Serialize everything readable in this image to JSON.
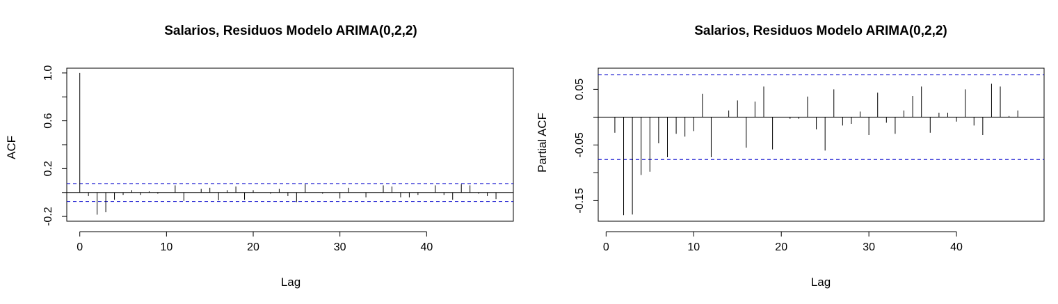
{
  "chart_data": [
    {
      "type": "bar",
      "title": "Salarios, Residuos Modelo ARIMA(0,2,2)",
      "xlabel": "Lag",
      "ylabel": "ACF",
      "xticks": [
        "0",
        "10",
        "20",
        "30",
        "40"
      ],
      "yticks": [
        "-0.2",
        "0.2",
        "0.6",
        "1.0"
      ],
      "xlim": [
        -1.5,
        50
      ],
      "ylim": [
        -0.24,
        1.04
      ],
      "confidence_bound": 0.075,
      "lags": [
        0,
        1,
        2,
        3,
        4,
        5,
        6,
        7,
        8,
        9,
        10,
        11,
        12,
        13,
        14,
        15,
        16,
        17,
        18,
        19,
        20,
        21,
        22,
        23,
        24,
        25,
        26,
        27,
        28,
        29,
        30,
        31,
        32,
        33,
        34,
        35,
        36,
        37,
        38,
        39,
        40,
        41,
        42,
        43,
        44,
        45,
        46,
        47,
        48
      ],
      "values": [
        1.0,
        -0.03,
        -0.185,
        -0.165,
        -0.06,
        -0.02,
        0.02,
        -0.02,
        0.01,
        -0.01,
        0.0,
        0.06,
        -0.07,
        0.0,
        0.03,
        0.04,
        -0.065,
        0.02,
        0.05,
        -0.06,
        0.02,
        0.0,
        -0.01,
        0.03,
        -0.03,
        -0.08,
        0.07,
        0.0,
        -0.01,
        0.0,
        -0.05,
        0.04,
        0.0,
        -0.04,
        0.0,
        0.06,
        0.05,
        -0.04,
        -0.04,
        -0.02,
        0.0,
        0.06,
        -0.02,
        -0.06,
        0.07,
        0.06,
        -0.01,
        -0.03,
        -0.055
      ],
      "series_color": "#000000",
      "bound_color": "#0000cc"
    },
    {
      "type": "bar",
      "title": "Salarios, Residuos Modelo ARIMA(0,2,2)",
      "xlabel": "Lag",
      "ylabel": "Partial ACF",
      "xticks": [
        "0",
        "10",
        "20",
        "30",
        "40"
      ],
      "yticks": [
        "-0.15",
        "-0.05",
        "0.05"
      ],
      "xlim": [
        -0.9,
        50
      ],
      "ylim": [
        -0.187,
        0.088
      ],
      "confidence_bound": 0.076,
      "lags": [
        1,
        2,
        3,
        4,
        5,
        6,
        7,
        8,
        9,
        10,
        11,
        12,
        13,
        14,
        15,
        16,
        17,
        18,
        19,
        20,
        21,
        22,
        23,
        24,
        25,
        26,
        27,
        28,
        29,
        30,
        31,
        32,
        33,
        34,
        35,
        36,
        37,
        38,
        39,
        40,
        41,
        42,
        43,
        44,
        45,
        46,
        47
      ],
      "values": [
        -0.028,
        -0.176,
        -0.175,
        -0.104,
        -0.098,
        -0.047,
        -0.072,
        -0.03,
        -0.035,
        -0.025,
        0.042,
        -0.072,
        0.0,
        0.012,
        0.03,
        -0.055,
        0.028,
        0.055,
        -0.058,
        0.0,
        -0.003,
        -0.003,
        0.037,
        -0.022,
        -0.06,
        0.05,
        -0.015,
        -0.012,
        0.01,
        -0.032,
        0.044,
        -0.01,
        -0.03,
        0.012,
        0.038,
        0.055,
        -0.028,
        0.008,
        0.008,
        -0.008,
        0.05,
        -0.015,
        -0.032,
        0.06,
        0.055,
        0.002,
        0.012
      ],
      "series_color": "#000000",
      "bound_color": "#0000cc"
    }
  ]
}
